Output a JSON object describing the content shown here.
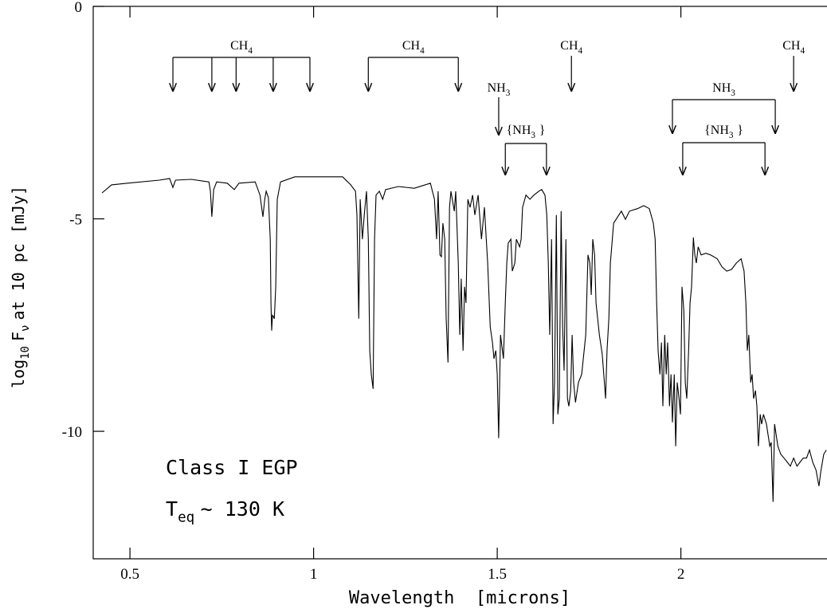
{
  "chart_data": {
    "type": "line",
    "color": "#000000",
    "x_label": "Wavelength  [microns]",
    "y_label": [
      {
        "text": "log"
      },
      {
        "text": "10",
        "sub": true
      },
      {
        "text": "F"
      },
      {
        "text": "ν",
        "sub": true
      },
      {
        "text": "at 10 pc [mJy]"
      }
    ],
    "xlim": [
      0.4,
      2.4
    ],
    "ylim": [
      -13,
      0
    ],
    "xticks": [
      0.5,
      1,
      1.5,
      2
    ],
    "yticks": [
      -10,
      -5,
      0
    ],
    "x": [
      0.424,
      0.45,
      0.493,
      0.58,
      0.608,
      0.617,
      0.624,
      0.667,
      0.715,
      0.719,
      0.723,
      0.728,
      0.736,
      0.765,
      0.784,
      0.797,
      0.841,
      0.854,
      0.862,
      0.867,
      0.871,
      0.877,
      0.882,
      0.884,
      0.886,
      0.888,
      0.893,
      0.897,
      0.901,
      0.91,
      0.949,
      1.014,
      1.079,
      1.101,
      1.114,
      1.118,
      1.123,
      1.127,
      1.133,
      1.138,
      1.144,
      1.149,
      1.153,
      1.157,
      1.162,
      1.166,
      1.17,
      1.179,
      1.188,
      1.196,
      1.231,
      1.274,
      1.318,
      1.329,
      1.335,
      1.339,
      1.344,
      1.348,
      1.352,
      1.357,
      1.361,
      1.366,
      1.37,
      1.374,
      1.383,
      1.387,
      1.394,
      1.398,
      1.402,
      1.407,
      1.411,
      1.415,
      1.42,
      1.426,
      1.433,
      1.439,
      1.448,
      1.457,
      1.465,
      1.474,
      1.481,
      1.487,
      1.491,
      1.496,
      1.5,
      1.504,
      1.509,
      1.517,
      1.522,
      1.526,
      1.53,
      1.537,
      1.541,
      1.548,
      1.552,
      1.561,
      1.565,
      1.569,
      1.578,
      1.589,
      1.6,
      1.613,
      1.621,
      1.63,
      1.635,
      1.639,
      1.643,
      1.648,
      1.652,
      1.656,
      1.661,
      1.665,
      1.669,
      1.674,
      1.678,
      1.682,
      1.687,
      1.691,
      1.695,
      1.7,
      1.704,
      1.708,
      1.713,
      1.721,
      1.73,
      1.741,
      1.747,
      1.752,
      1.756,
      1.76,
      1.765,
      1.769,
      1.778,
      1.786,
      1.795,
      1.799,
      1.804,
      1.808,
      1.817,
      1.828,
      1.838,
      1.849,
      1.86,
      1.882,
      1.899,
      1.914,
      1.925,
      1.93,
      1.934,
      1.938,
      1.943,
      1.947,
      1.951,
      1.956,
      1.96,
      1.964,
      1.969,
      1.973,
      1.977,
      1.982,
      1.986,
      1.99,
      1.995,
      1.999,
      2.003,
      2.008,
      2.012,
      2.016,
      2.021,
      2.025,
      2.029,
      2.034,
      2.038,
      2.042,
      2.047,
      2.055,
      2.068,
      2.081,
      2.099,
      2.112,
      2.125,
      2.138,
      2.151,
      2.164,
      2.172,
      2.177,
      2.181,
      2.185,
      2.19,
      2.194,
      2.198,
      2.203,
      2.207,
      2.211,
      2.216,
      2.22,
      2.225,
      2.233,
      2.242,
      2.246,
      2.251,
      2.255,
      2.264,
      2.272,
      2.281,
      2.29,
      2.298,
      2.307,
      2.316,
      2.324,
      2.333,
      2.342,
      2.35,
      2.359,
      2.368,
      2.376,
      2.381,
      2.389,
      2.396
    ],
    "values": [
      -4.39,
      -4.2,
      -4.16,
      -4.09,
      -4.05,
      -4.26,
      -4.09,
      -4.07,
      -4.13,
      -4.35,
      -4.95,
      -4.31,
      -4.13,
      -4.16,
      -4.31,
      -4.16,
      -4.13,
      -4.44,
      -4.95,
      -4.54,
      -4.35,
      -4.5,
      -5.48,
      -6.98,
      -7.63,
      -7.26,
      -7.35,
      -6.6,
      -4.54,
      -4.13,
      -4.01,
      -4.01,
      -4.01,
      -4.2,
      -4.35,
      -4.91,
      -7.35,
      -4.54,
      -5.48,
      -4.91,
      -4.35,
      -5.48,
      -8.1,
      -8.66,
      -9.0,
      -5.48,
      -4.44,
      -4.35,
      -4.54,
      -4.31,
      -4.24,
      -4.28,
      -4.16,
      -4.54,
      -5.48,
      -4.35,
      -5.85,
      -5.89,
      -5.1,
      -5.48,
      -7.35,
      -8.38,
      -4.73,
      -4.35,
      -4.82,
      -4.35,
      -6.04,
      -7.73,
      -6.41,
      -8.1,
      -6.6,
      -6.98,
      -4.54,
      -4.73,
      -4.44,
      -4.91,
      -4.44,
      -5.48,
      -4.73,
      -6.04,
      -7.54,
      -7.91,
      -8.29,
      -8.1,
      -8.66,
      -10.16,
      -7.73,
      -8.29,
      -6.98,
      -6.04,
      -5.57,
      -5.48,
      -6.23,
      -6.04,
      -5.48,
      -5.66,
      -5.48,
      -4.73,
      -4.44,
      -4.54,
      -4.44,
      -4.35,
      -4.31,
      -4.44,
      -4.91,
      -6.04,
      -7.73,
      -5.48,
      -9.83,
      -8.85,
      -4.91,
      -9.6,
      -9.23,
      -4.82,
      -7.54,
      -8.57,
      -5.48,
      -9.23,
      -9.41,
      -9.04,
      -7.73,
      -8.85,
      -9.32,
      -8.85,
      -8.66,
      -7.73,
      -5.85,
      -6.04,
      -6.79,
      -5.48,
      -5.85,
      -6.98,
      -7.73,
      -8.19,
      -9.23,
      -8.1,
      -7.35,
      -6.04,
      -5.1,
      -4.95,
      -4.82,
      -5.01,
      -4.82,
      -4.76,
      -4.69,
      -4.76,
      -5.1,
      -5.48,
      -6.98,
      -8.1,
      -8.66,
      -7.91,
      -9.41,
      -7.73,
      -8.66,
      -7.91,
      -9.41,
      -8.66,
      -9.79,
      -8.66,
      -10.35,
      -8.85,
      -9.23,
      -9.6,
      -6.6,
      -7.16,
      -8.85,
      -9.23,
      -8.1,
      -6.98,
      -6.6,
      -5.44,
      -5.85,
      -6.04,
      -5.66,
      -5.85,
      -5.81,
      -5.85,
      -5.94,
      -6.13,
      -6.23,
      -6.19,
      -6.04,
      -5.94,
      -6.23,
      -6.98,
      -8.1,
      -7.73,
      -8.85,
      -8.66,
      -9.23,
      -9.04,
      -9.41,
      -10.35,
      -9.6,
      -9.83,
      -9.6,
      -9.83,
      -10.35,
      -10.26,
      -11.66,
      -9.83,
      -10.35,
      -10.54,
      -10.63,
      -10.73,
      -10.82,
      -10.63,
      -10.82,
      -10.73,
      -10.63,
      -10.63,
      -10.44,
      -10.73,
      -10.91,
      -11.29,
      -10.95,
      -10.54,
      -10.44
    ],
    "annotations": [
      {
        "label": [
          {
            "text": "CH"
          },
          {
            "text": "4",
            "sub": true
          }
        ],
        "wavelengths": [
          0.617,
          0.723,
          0.789,
          0.89,
          0.99
        ]
      },
      {
        "label": [
          {
            "text": "CH"
          },
          {
            "text": "4",
            "sub": true
          }
        ],
        "wavelengths": [
          1.149,
          1.394
        ]
      },
      {
        "label": [
          {
            "text": "CH"
          },
          {
            "text": "4",
            "sub": true
          }
        ],
        "wavelengths": [
          1.702
        ]
      },
      {
        "label": [
          {
            "text": "CH"
          },
          {
            "text": "4",
            "sub": true
          }
        ],
        "wavelengths": [
          2.307
        ]
      },
      {
        "label": [
          {
            "text": "NH"
          },
          {
            "text": "3",
            "sub": true
          }
        ],
        "wavelengths": [
          1.504
        ]
      },
      {
        "label": [
          {
            "text": "{NH"
          },
          {
            "text": "3",
            "sub": true
          },
          {
            "text": "}"
          }
        ],
        "wavelengths": [
          1.522,
          1.634
        ]
      },
      {
        "label": [
          {
            "text": "NH"
          },
          {
            "text": "3",
            "sub": true
          }
        ],
        "wavelengths": [
          1.977,
          2.257
        ]
      },
      {
        "label": [
          {
            "text": "{NH"
          },
          {
            "text": "3",
            "sub": true
          },
          {
            "text": "}"
          }
        ],
        "wavelengths": [
          2.005,
          2.229
        ]
      }
    ],
    "notes": [
      [
        {
          "text": "Class I EGP"
        }
      ],
      [
        {
          "text": "T"
        },
        {
          "text": "eq",
          "sub": true
        },
        {
          "text": "~ 130 K"
        }
      ]
    ]
  }
}
